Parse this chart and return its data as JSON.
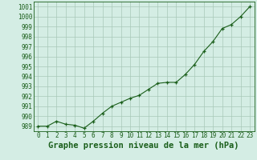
{
  "x": [
    0,
    1,
    2,
    3,
    4,
    5,
    6,
    7,
    8,
    9,
    10,
    11,
    12,
    13,
    14,
    15,
    16,
    17,
    18,
    19,
    20,
    21,
    22,
    23
  ],
  "y": [
    989.0,
    989.0,
    989.5,
    989.2,
    989.1,
    988.8,
    989.5,
    990.3,
    991.0,
    991.4,
    991.8,
    992.1,
    992.7,
    993.3,
    993.4,
    993.4,
    994.2,
    995.2,
    996.5,
    997.5,
    998.8,
    999.2,
    1000.0,
    1001.0
  ],
  "line_color": "#1a5e1a",
  "marker_color": "#1a5e1a",
  "bg_color": "#d4ede4",
  "grid_color": "#a8c8b8",
  "title": "Graphe pression niveau de la mer (hPa)",
  "ylim_min": 988.5,
  "ylim_max": 1001.5,
  "yticks": [
    989,
    990,
    991,
    992,
    993,
    994,
    995,
    996,
    997,
    998,
    999,
    1000,
    1001
  ],
  "xticks": [
    0,
    1,
    2,
    3,
    4,
    5,
    6,
    7,
    8,
    9,
    10,
    11,
    12,
    13,
    14,
    15,
    16,
    17,
    18,
    19,
    20,
    21,
    22,
    23
  ],
  "title_fontsize": 7.5,
  "tick_fontsize": 5.5,
  "title_fontweight": "bold"
}
